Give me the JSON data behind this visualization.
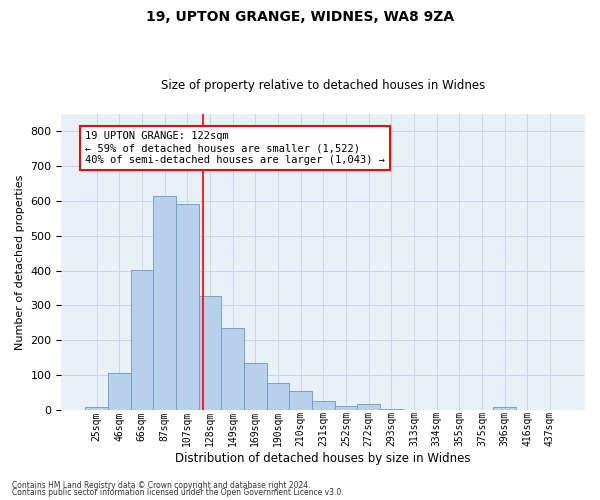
{
  "title1": "19, UPTON GRANGE, WIDNES, WA8 9ZA",
  "title2": "Size of property relative to detached houses in Widnes",
  "xlabel": "Distribution of detached houses by size in Widnes",
  "ylabel": "Number of detached properties",
  "bar_labels": [
    "25sqm",
    "46sqm",
    "66sqm",
    "87sqm",
    "107sqm",
    "128sqm",
    "149sqm",
    "169sqm",
    "190sqm",
    "210sqm",
    "231sqm",
    "252sqm",
    "272sqm",
    "293sqm",
    "313sqm",
    "334sqm",
    "355sqm",
    "375sqm",
    "396sqm",
    "416sqm",
    "437sqm"
  ],
  "bar_values": [
    7,
    105,
    402,
    614,
    592,
    328,
    236,
    135,
    76,
    53,
    26,
    11,
    16,
    3,
    0,
    0,
    0,
    0,
    7,
    0,
    0
  ],
  "bar_color": "#b8d0ea",
  "bar_edge_color": "#6699cc",
  "grid_color": "#c8d8e8",
  "background_color": "#e8f0f8",
  "ylim": [
    0,
    850
  ],
  "yticks": [
    0,
    100,
    200,
    300,
    400,
    500,
    600,
    700,
    800
  ],
  "annotation_text": "19 UPTON GRANGE: 122sqm\n← 59% of detached houses are smaller (1,522)\n40% of semi-detached houses are larger (1,043) →",
  "prop_index_lower": 4,
  "prop_size": 122,
  "bin_lower": 107,
  "bin_upper": 128,
  "footer1": "Contains HM Land Registry data © Crown copyright and database right 2024.",
  "footer2": "Contains public sector information licensed under the Open Government Licence v3.0."
}
